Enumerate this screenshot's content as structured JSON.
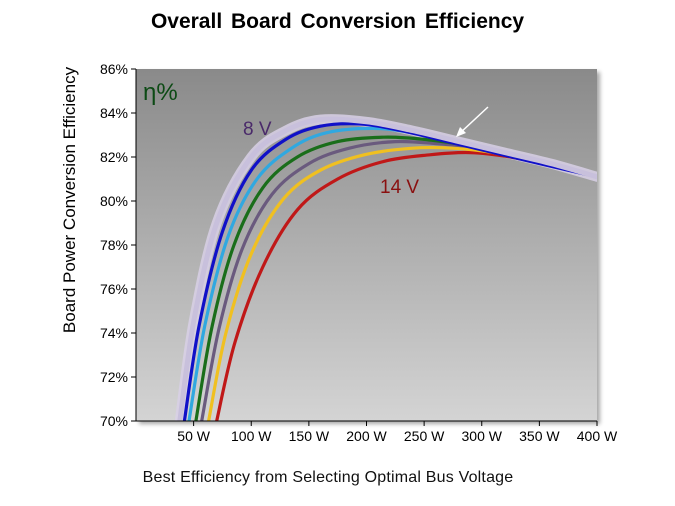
{
  "title": "Overall Board Conversion Efficiency",
  "caption": "Best Efficiency from Selecting Optimal Bus Voltage",
  "chart_data": {
    "type": "line",
    "title": "Overall Board Conversion Efficiency",
    "xlabel": "",
    "ylabel": "Board Power Conversion Efficiency",
    "xlim": [
      0,
      400
    ],
    "ylim": [
      70,
      86
    ],
    "x_ticks": [
      "50 W",
      "100 W",
      "150 W",
      "200 W",
      "250 W",
      "300 W",
      "350 W",
      "400 W"
    ],
    "y_ticks": [
      "70%",
      "72%",
      "74%",
      "76%",
      "78%",
      "80%",
      "82%",
      "84%",
      "86%"
    ],
    "grid": false,
    "annotations": {
      "symbol": "η%",
      "low_voltage": "8 V",
      "high_voltage": "14 V"
    },
    "envelope_color": "#d8d0e6",
    "series": [
      {
        "color": "#c8c0dc",
        "x": [
          38,
          50,
          70,
          100,
          130,
          160,
          200,
          240,
          280,
          320,
          360,
          400
        ],
        "y": [
          70.0,
          74.5,
          79.0,
          82.0,
          83.2,
          83.7,
          83.6,
          83.2,
          82.7,
          82.2,
          81.7,
          81.1
        ]
      },
      {
        "color": "#1010c8",
        "x": [
          42,
          55,
          75,
          100,
          130,
          160,
          195,
          230,
          270,
          310,
          350,
          400
        ],
        "y": [
          70.0,
          74.4,
          78.6,
          81.4,
          82.8,
          83.4,
          83.5,
          83.2,
          82.7,
          82.2,
          81.7,
          81.1
        ]
      },
      {
        "color": "#30a8e0",
        "x": [
          46,
          60,
          80,
          105,
          135,
          165,
          205,
          240,
          280,
          320,
          360,
          400
        ],
        "y": [
          70.0,
          74.4,
          78.4,
          81.0,
          82.4,
          83.1,
          83.3,
          83.1,
          82.6,
          82.1,
          81.6,
          81.1
        ]
      },
      {
        "color": "#1a6e1a",
        "x": [
          52,
          66,
          85,
          110,
          140,
          175,
          215,
          250,
          290,
          330,
          370,
          400
        ],
        "y": [
          70.0,
          74.3,
          78.0,
          80.6,
          82.0,
          82.7,
          82.9,
          82.8,
          82.5,
          82.0,
          81.5,
          81.1
        ]
      },
      {
        "color": "#6a5a7e",
        "x": [
          57,
          72,
          92,
          118,
          150,
          185,
          225,
          262,
          300,
          340,
          375,
          400
        ],
        "y": [
          70.0,
          74.2,
          77.8,
          80.3,
          81.7,
          82.4,
          82.7,
          82.6,
          82.4,
          81.9,
          81.5,
          81.1
        ]
      },
      {
        "color": "#f0c020",
        "x": [
          63,
          78,
          100,
          128,
          160,
          198,
          240,
          275,
          310,
          345,
          380,
          400
        ],
        "y": [
          70.0,
          74.0,
          77.6,
          80.1,
          81.4,
          82.1,
          82.4,
          82.4,
          82.2,
          81.8,
          81.4,
          81.1
        ]
      },
      {
        "color": "#c01818",
        "x": [
          70,
          86,
          110,
          140,
          175,
          215,
          255,
          290,
          325,
          360,
          385,
          400
        ],
        "y": [
          70.0,
          73.6,
          77.0,
          79.6,
          81.0,
          81.8,
          82.1,
          82.2,
          82.0,
          81.6,
          81.3,
          81.1
        ]
      }
    ]
  }
}
